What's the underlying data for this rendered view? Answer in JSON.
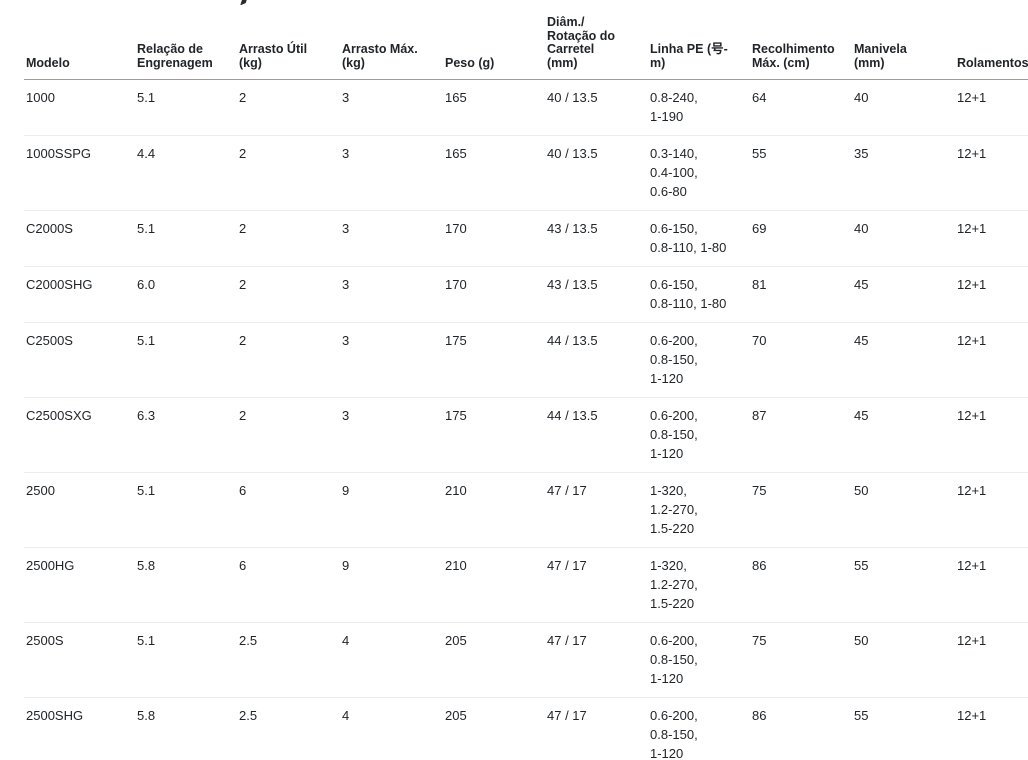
{
  "colors": {
    "text": "#212529",
    "header_border": "#9c9c9c",
    "row_border": "#ededed",
    "background": "#ffffff"
  },
  "table": {
    "type": "table",
    "columns": [
      {
        "key": "modelo",
        "label": "Modelo",
        "width": 111
      },
      {
        "key": "relacao-engrenagem",
        "label": "Relação de\nEngrenagem",
        "width": 102
      },
      {
        "key": "arrasto-util",
        "label": "Arrasto Útil\n(kg)",
        "width": 103
      },
      {
        "key": "arrasto-max",
        "label": "Arrasto Máx.\n(kg)",
        "width": 103
      },
      {
        "key": "peso",
        "label": "Peso (g)",
        "width": 102
      },
      {
        "key": "diam-rotacao-carretel",
        "label": "Diâm./\nRotação do\nCarretel\n(mm)",
        "width": 103
      },
      {
        "key": "linha-pe",
        "label": "Linha PE (号-\nm)",
        "width": 102
      },
      {
        "key": "recolhimento-max",
        "label": "Recolhimento\nMáx. (cm)",
        "width": 102
      },
      {
        "key": "manivela",
        "label": "Manivela\n(mm)",
        "width": 103
      },
      {
        "key": "rolamentos",
        "label": "Rolamentos",
        "width": 73
      }
    ],
    "rows": [
      [
        "1000",
        "5.1",
        "2",
        "3",
        "165",
        "40 / 13.5",
        "0.8-240,\n1-190",
        "64",
        "40",
        "12+1"
      ],
      [
        "1000SSPG",
        "4.4",
        "2",
        "3",
        "165",
        "40 / 13.5",
        "0.3-140,\n0.4-100,\n0.6-80",
        "55",
        "35",
        "12+1"
      ],
      [
        "C2000S",
        "5.1",
        "2",
        "3",
        "170",
        "43 / 13.5",
        "0.6-150,\n0.8-110, 1-80",
        "69",
        "40",
        "12+1"
      ],
      [
        "C2000SHG",
        "6.0",
        "2",
        "3",
        "170",
        "43 / 13.5",
        "0.6-150,\n0.8-110, 1-80",
        "81",
        "45",
        "12+1"
      ],
      [
        "C2500S",
        "5.1",
        "2",
        "3",
        "175",
        "44 / 13.5",
        "0.6-200,\n0.8-150,\n1-120",
        "70",
        "45",
        "12+1"
      ],
      [
        "C2500SXG",
        "6.3",
        "2",
        "3",
        "175",
        "44 / 13.5",
        "0.6-200,\n0.8-150,\n1-120",
        "87",
        "45",
        "12+1"
      ],
      [
        "2500",
        "5.1",
        "6",
        "9",
        "210",
        "47 / 17",
        "1-320,\n1.2-270,\n1.5-220",
        "75",
        "50",
        "12+1"
      ],
      [
        "2500HG",
        "5.8",
        "6",
        "9",
        "210",
        "47 / 17",
        "1-320,\n1.2-270,\n1.5-220",
        "86",
        "55",
        "12+1"
      ],
      [
        "2500S",
        "5.1",
        "2.5",
        "4",
        "205",
        "47 / 17",
        "0.6-200,\n0.8-150,\n1-120",
        "75",
        "50",
        "12+1"
      ],
      [
        "2500SHG",
        "5.8",
        "2.5",
        "4",
        "205",
        "47 / 17",
        "0.6-200,\n0.8-150,\n1-120",
        "86",
        "55",
        "12+1"
      ]
    ]
  }
}
